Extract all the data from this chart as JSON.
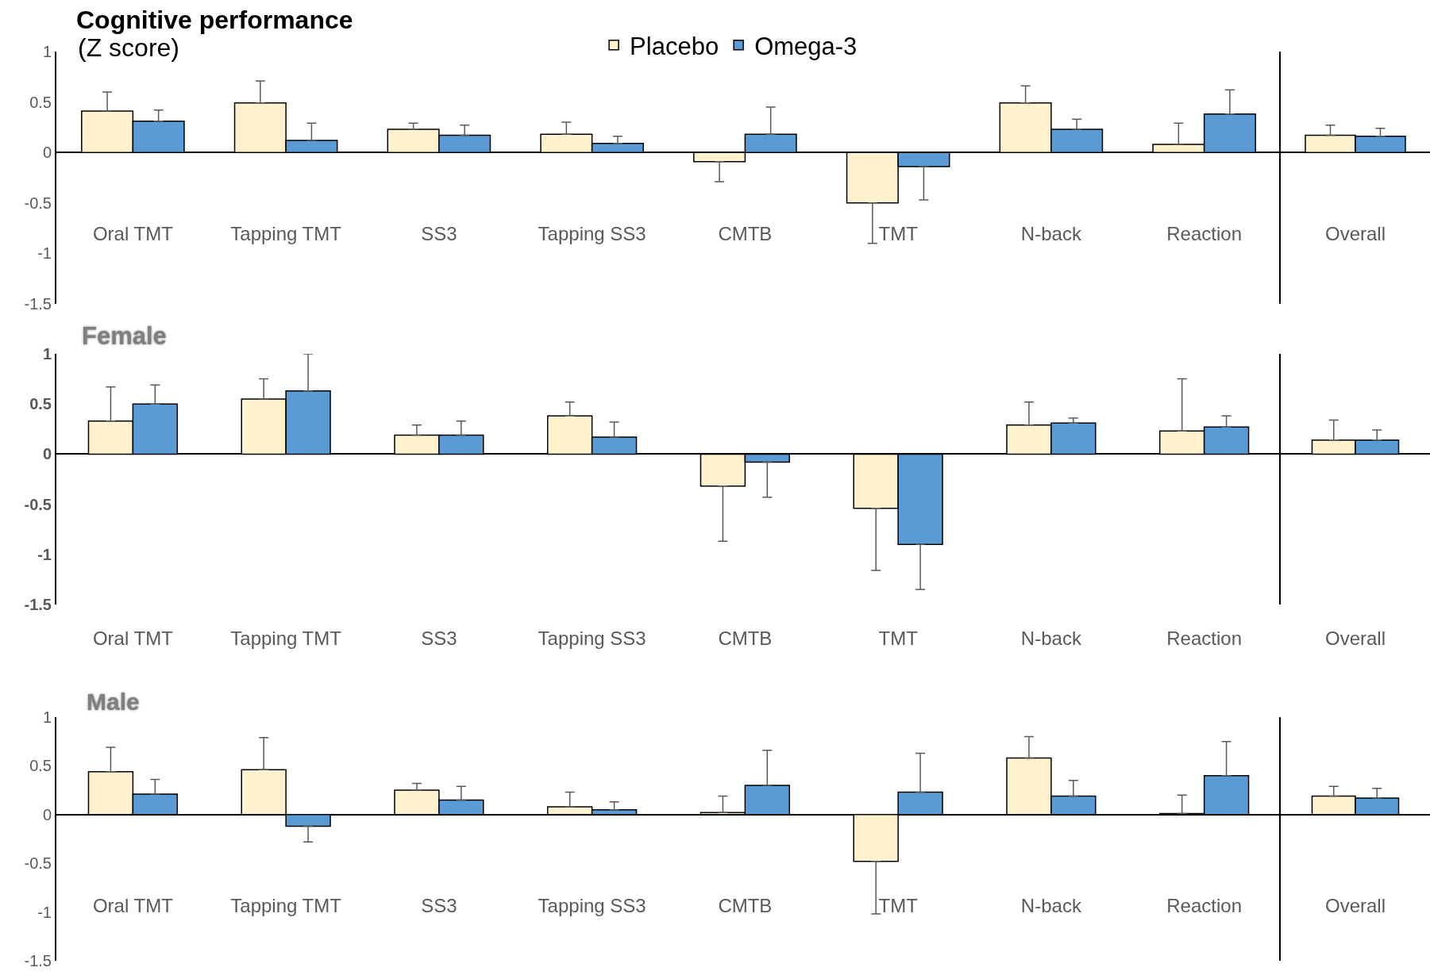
{
  "chart_data": [
    {
      "type": "bar",
      "title": "Cognitive performance",
      "ylabel": "(Z score)",
      "categories": [
        "Oral TMT",
        "Tapping TMT",
        "SS3",
        "Tapping SS3",
        "CMTB",
        "TMT",
        "N-back",
        "Reaction"
      ],
      "series": [
        {
          "name": "Placebo",
          "color": "#fff2cc",
          "values": [
            0.41,
            0.49,
            0.23,
            0.18,
            -0.09,
            -0.5,
            0.49,
            0.08
          ],
          "errors": [
            [
              0.41,
              0.6
            ],
            [
              0.49,
              0.71
            ],
            [
              0.23,
              0.29
            ],
            [
              0.18,
              0.3
            ],
            [
              -0.29,
              -0.09
            ],
            [
              -0.9,
              -0.5
            ],
            [
              0.49,
              0.66
            ],
            [
              0.08,
              0.29
            ]
          ]
        },
        {
          "name": "Omega-3",
          "color": "#5b9bd5",
          "values": [
            0.31,
            0.12,
            0.17,
            0.09,
            0.18,
            -0.14,
            0.23,
            0.38
          ],
          "errors": [
            [
              0.31,
              0.42
            ],
            [
              0.12,
              0.29
            ],
            [
              0.17,
              0.27
            ],
            [
              0.09,
              0.16
            ],
            [
              0.18,
              0.45
            ],
            [
              -0.47,
              -0.14
            ],
            [
              0.23,
              0.33
            ],
            [
              0.38,
              0.62
            ]
          ]
        }
      ],
      "ylim": [
        -1.5,
        1
      ],
      "yticks": [
        -1.5,
        -1,
        -0.5,
        0,
        0.5,
        1
      ],
      "legend": "top"
    },
    {
      "type": "bar",
      "categories": [
        "Overall"
      ],
      "series": [
        {
          "color": "#fff2cc",
          "values": [
            0.17
          ],
          "errors": [
            [
              0.17,
              0.27
            ]
          ]
        },
        {
          "color": "#5b9bd5",
          "values": [
            0.16
          ],
          "errors": [
            [
              0.16,
              0.24
            ]
          ]
        }
      ],
      "ylim": [
        -1.5,
        1
      ],
      "yticks": [
        -1.5,
        -1,
        -0.5,
        0,
        0.5,
        1
      ],
      "tick_labels": "x"
    },
    {
      "type": "bar",
      "title": "Female",
      "categories": [
        "Oral TMT",
        "Tapping TMT",
        "SS3",
        "Tapping SS3",
        "CMTB",
        "TMT",
        "N-back",
        "Reaction"
      ],
      "series": [
        {
          "color": "#fff2cc",
          "values": [
            0.33,
            0.55,
            0.19,
            0.38,
            -0.32,
            -0.54,
            0.29,
            0.23
          ],
          "errors": [
            [
              0.33,
              0.67
            ],
            [
              0.55,
              0.75
            ],
            [
              0.19,
              0.29
            ],
            [
              0.38,
              0.52
            ],
            [
              -0.87,
              -0.32
            ],
            [
              -1.16,
              -0.54
            ],
            [
              0.29,
              0.52
            ],
            [
              0.23,
              0.75
            ]
          ]
        },
        {
          "color": "#5b9bd5",
          "values": [
            0.5,
            0.63,
            0.19,
            0.17,
            -0.08,
            -0.9,
            0.31,
            0.27
          ],
          "errors": [
            [
              0.5,
              0.69
            ],
            [
              0.63,
              1.0
            ],
            [
              0.19,
              0.33
            ],
            [
              0.17,
              0.32
            ],
            [
              -0.43,
              -0.08
            ],
            [
              -1.35,
              -0.9
            ],
            [
              0.31,
              0.36
            ],
            [
              0.27,
              0.38
            ]
          ]
        }
      ],
      "ylim": [
        -1.5,
        1
      ],
      "yticks": [
        -1.5,
        -1,
        -0.5,
        0,
        0.5,
        1
      ]
    },
    {
      "type": "bar",
      "categories": [
        "Overall"
      ],
      "series": [
        {
          "color": "#fff2cc",
          "values": [
            0.14
          ],
          "errors": [
            [
              0.14,
              0.34
            ]
          ]
        },
        {
          "color": "#5b9bd5",
          "values": [
            0.14
          ],
          "errors": [
            [
              0.14,
              0.24
            ]
          ]
        }
      ],
      "ylim": [
        -1.5,
        1
      ],
      "yticks": [
        -1.5,
        -1,
        -0.5,
        0,
        0.5,
        1
      ],
      "tick_labels": "x"
    },
    {
      "type": "bar",
      "title": "Male",
      "categories": [
        "Oral TMT",
        "Tapping TMT",
        "SS3",
        "Tapping SS3",
        "CMTB",
        "TMT",
        "N-back",
        "Reaction"
      ],
      "series": [
        {
          "color": "#fff2cc",
          "values": [
            0.44,
            0.46,
            0.25,
            0.08,
            0.02,
            -0.48,
            0.58,
            0.01
          ],
          "errors": [
            [
              0.44,
              0.69
            ],
            [
              0.46,
              0.79
            ],
            [
              0.25,
              0.32
            ],
            [
              0.08,
              0.23
            ],
            [
              0.02,
              0.19
            ],
            [
              -1.02,
              -0.48
            ],
            [
              0.58,
              0.8
            ],
            [
              0.01,
              0.2
            ]
          ]
        },
        {
          "color": "#5b9bd5",
          "values": [
            0.21,
            -0.12,
            0.15,
            0.05,
            0.3,
            0.23,
            0.19,
            0.4
          ],
          "errors": [
            [
              0.21,
              0.36
            ],
            [
              -0.28,
              -0.12
            ],
            [
              0.15,
              0.29
            ],
            [
              0.05,
              0.13
            ],
            [
              0.3,
              0.66
            ],
            [
              0.23,
              0.63
            ],
            [
              0.19,
              0.35
            ],
            [
              0.4,
              0.75
            ]
          ]
        }
      ],
      "ylim": [
        -1.5,
        1
      ],
      "yticks": [
        -1.5,
        -1,
        -0.5,
        0,
        0.5,
        1
      ]
    },
    {
      "type": "bar",
      "categories": [
        "Overall"
      ],
      "series": [
        {
          "color": "#fff2cc",
          "values": [
            0.19
          ],
          "errors": [
            [
              0.19,
              0.29
            ]
          ]
        },
        {
          "color": "#5b9bd5",
          "values": [
            0.17
          ],
          "errors": [
            [
              0.17,
              0.27
            ]
          ]
        }
      ],
      "ylim": [
        -1.5,
        1
      ],
      "yticks": [
        -1.5,
        -1,
        -0.5,
        0,
        0.5,
        1
      ],
      "tick_labels": "x"
    }
  ]
}
